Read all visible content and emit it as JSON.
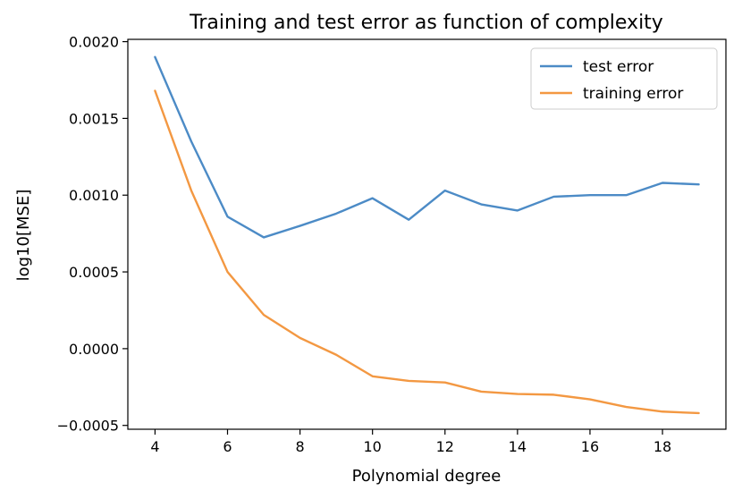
{
  "chart_data": {
    "type": "line",
    "title": "Training and test error as function of complexity",
    "xlabel": "Polynomial degree",
    "ylabel": "log10[MSE]",
    "x": [
      4,
      5,
      6,
      7,
      8,
      9,
      10,
      11,
      12,
      13,
      14,
      15,
      16,
      17,
      18,
      19
    ],
    "xlim": [
      3.25,
      19.75
    ],
    "ylim": [
      -0.000525,
      0.002015
    ],
    "xticks": [
      4,
      6,
      8,
      10,
      12,
      14,
      16,
      18
    ],
    "xtick_labels": [
      "4",
      "6",
      "8",
      "10",
      "12",
      "14",
      "16",
      "18"
    ],
    "yticks": [
      -0.0005,
      0.0,
      0.0005,
      0.001,
      0.0015,
      0.002
    ],
    "ytick_labels": [
      "−0.0005",
      "0.0000",
      "0.0005",
      "0.0010",
      "0.0015",
      "0.0020"
    ],
    "grid": false,
    "legend_position": "top-right",
    "series": [
      {
        "name": "test error",
        "color": "#4c8bc6",
        "values": [
          0.0019,
          0.00135,
          0.00086,
          0.000725,
          0.0008,
          0.00088,
          0.00098,
          0.00084,
          0.00103,
          0.00094,
          0.0009,
          0.00099,
          0.001,
          0.001,
          0.00108,
          0.00107
        ]
      },
      {
        "name": "training error",
        "color": "#f39842",
        "values": [
          0.00168,
          0.00103,
          0.0005,
          0.00022,
          7e-05,
          -4e-05,
          -0.00018,
          -0.00021,
          -0.00022,
          -0.00028,
          -0.000295,
          -0.0003,
          -0.00033,
          -0.00038,
          -0.00041,
          -0.00042
        ]
      }
    ]
  }
}
